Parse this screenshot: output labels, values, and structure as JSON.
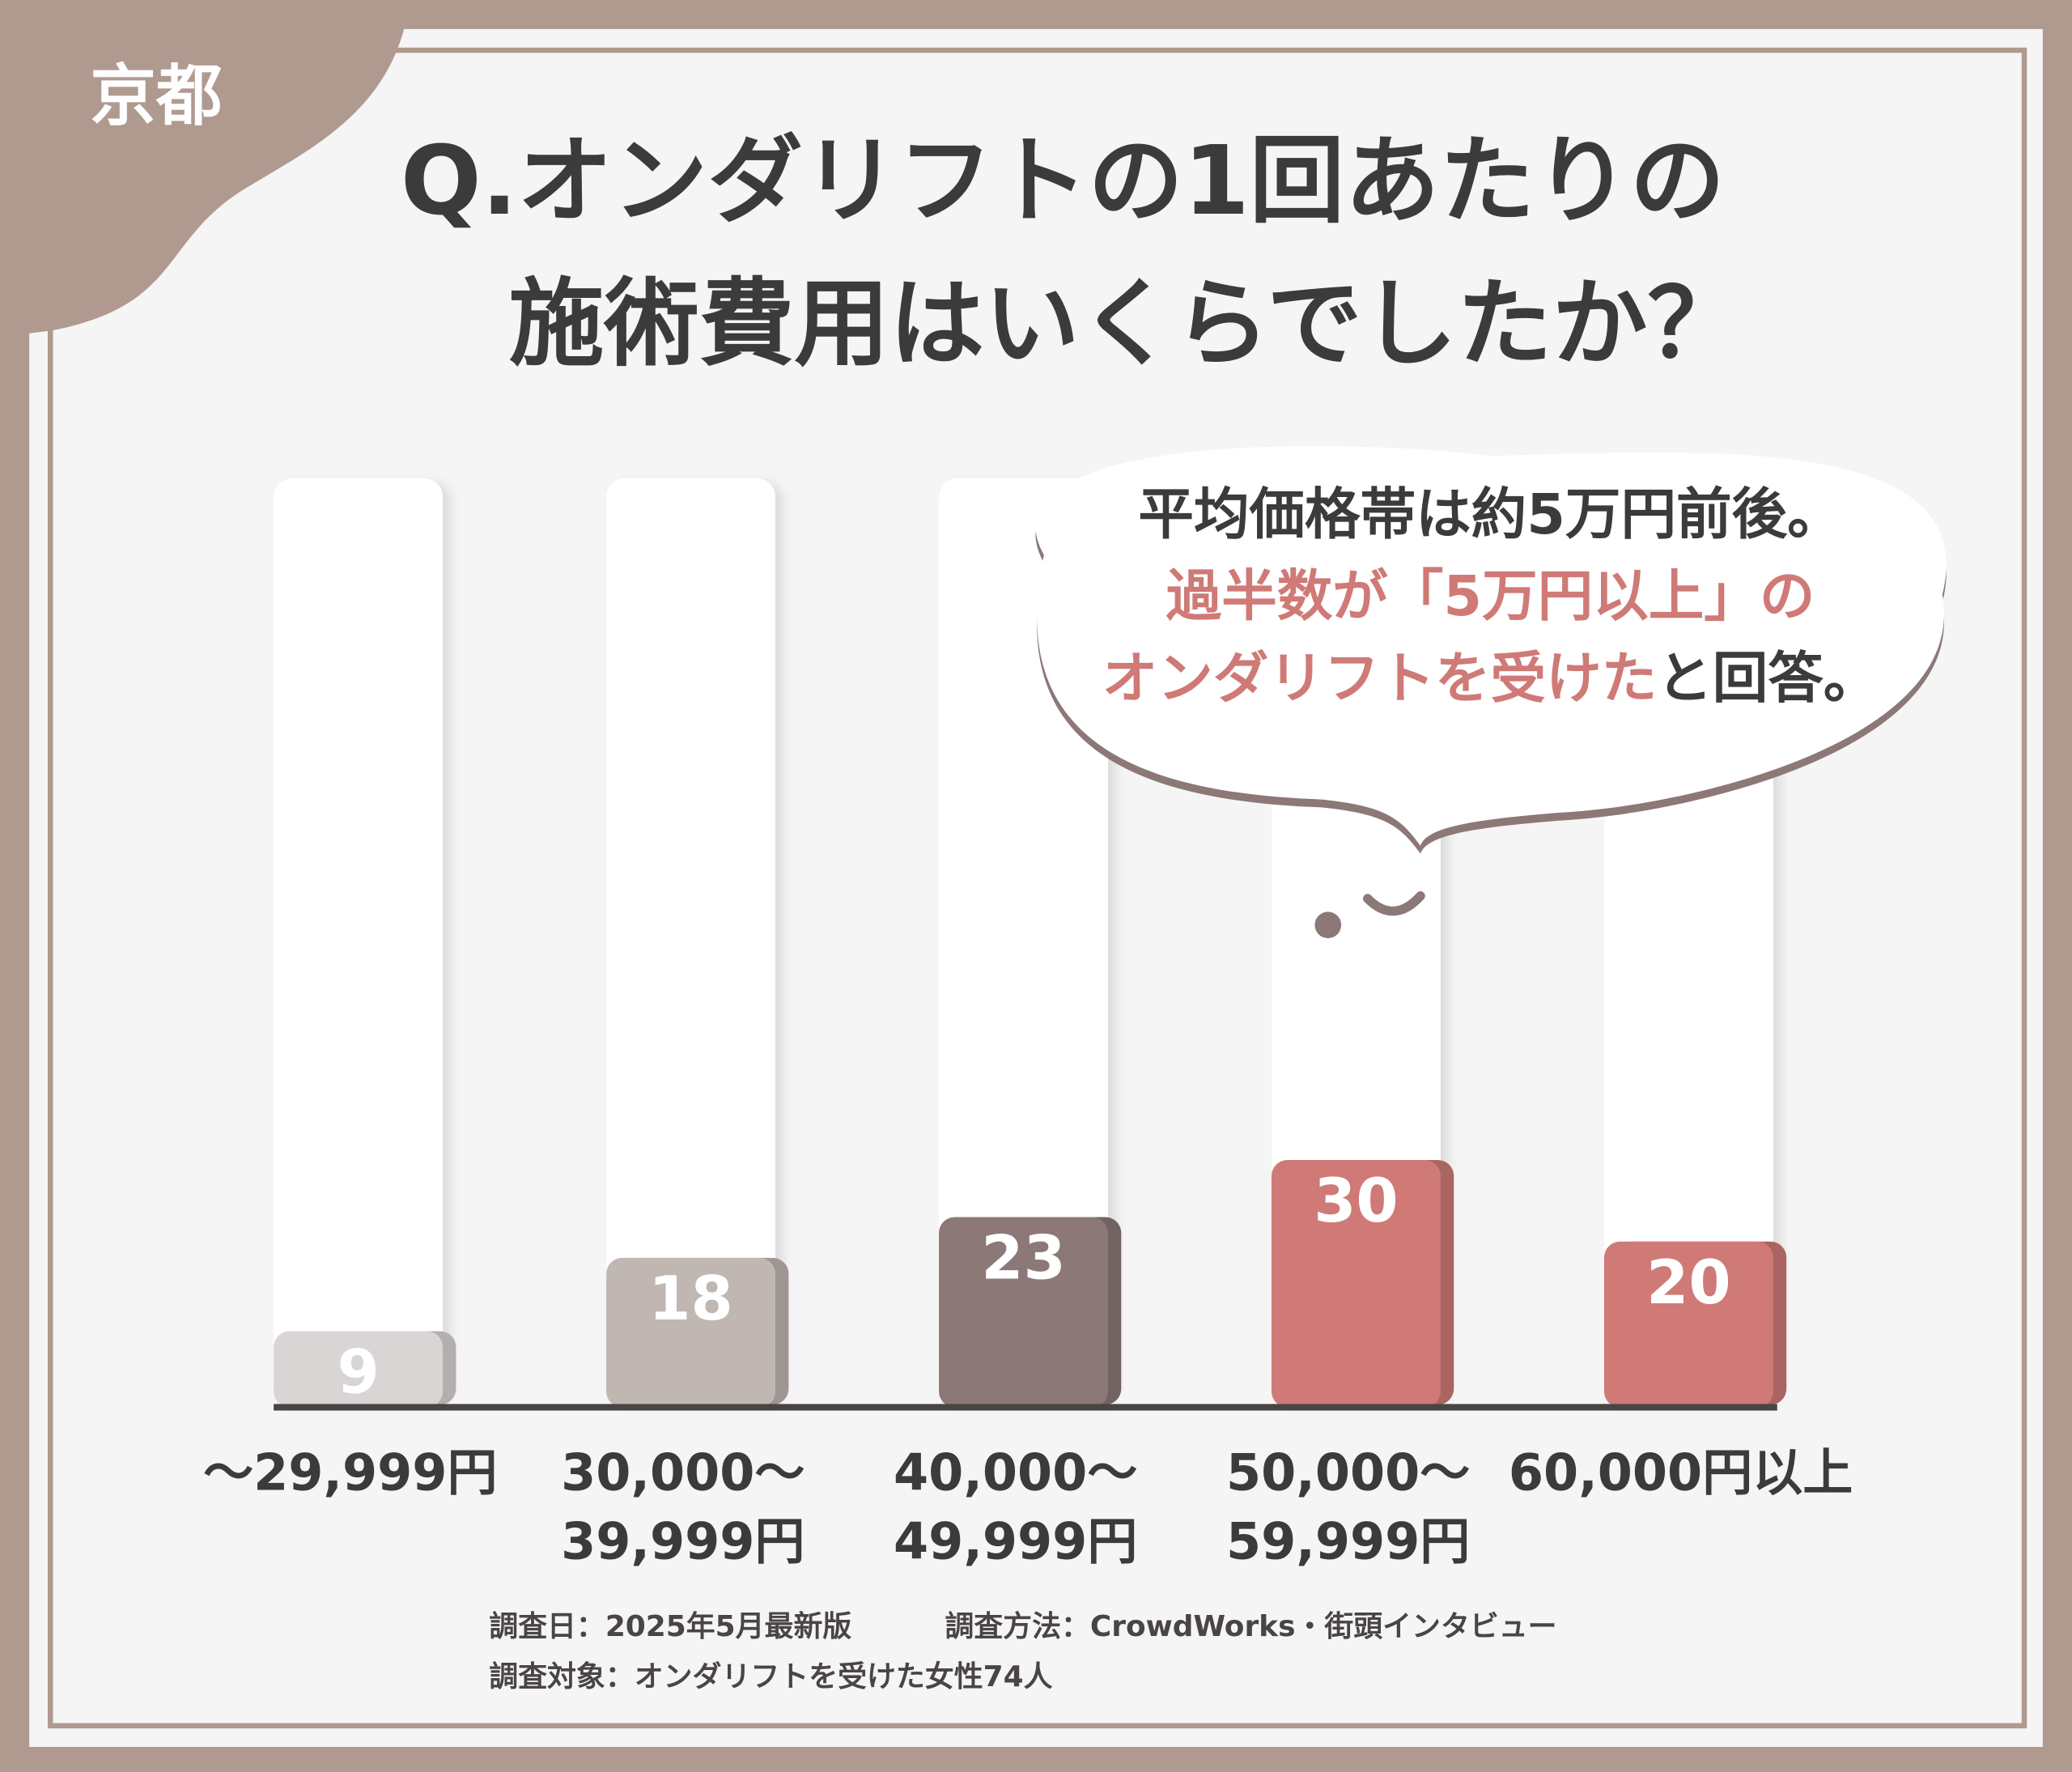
{
  "tag": "京都",
  "chart_data": {
    "type": "bar",
    "title": [
      "Q.オンダリフトの1回あたりの",
      "施術費用はいくらでしたか？"
    ],
    "annotation": [
      [
        {
          "text": "平均価格帯は約5万円前後。",
          "color": "#3c3a3a"
        }
      ],
      [
        {
          "text": "過半数が「5万円以上」の",
          "color": "#cf7a76"
        }
      ],
      [
        {
          "text": "オンダリフトを受けた",
          "color": "#cf7a76"
        },
        {
          "text": "と回答。",
          "color": "#3c3a3a"
        }
      ]
    ],
    "categories": [
      [
        "～29,999円"
      ],
      [
        "30,000～",
        "39,999円"
      ],
      [
        "40,000～",
        "49,999円"
      ],
      [
        "50,000～",
        "59,999円"
      ],
      [
        "60,000円以上"
      ]
    ],
    "values": [
      9,
      18,
      23,
      30,
      20
    ],
    "colors": [
      "#d9d5d4",
      "#c0b7b3",
      "#8c7877",
      "#cf7a76",
      "#cf7a76"
    ],
    "notes": [
      "調査日：2025年5月最新版",
      "調査方法：CrowdWorks・街頭インタビュー",
      "調査対象：オンダリフトを受けた女性74人"
    ]
  }
}
